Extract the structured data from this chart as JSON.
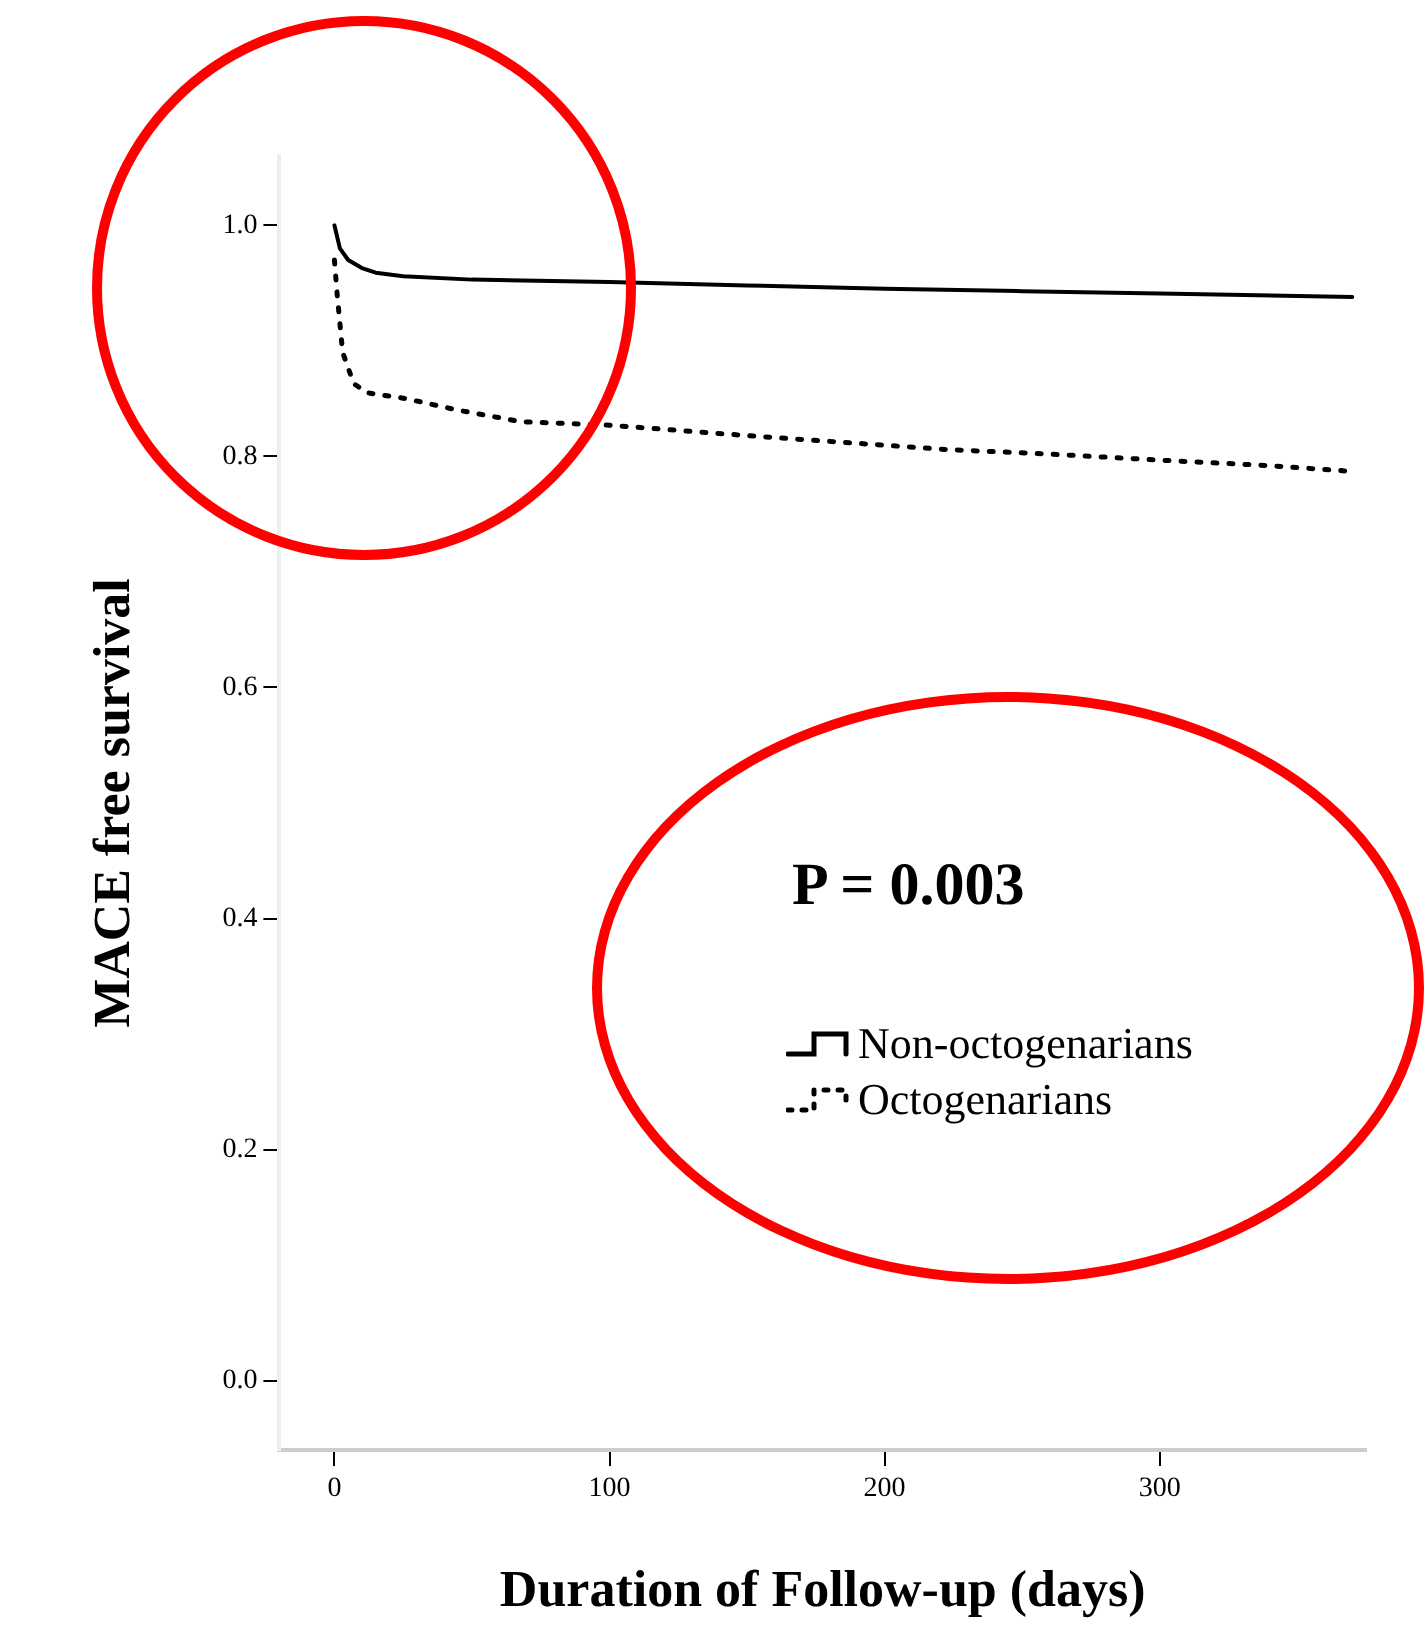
{
  "chart_data": {
    "type": "line",
    "xlabel": "Duration of Follow-up (days)",
    "ylabel": "MACE free survival",
    "annotations": [
      "P = 0.003"
    ],
    "series": [
      {
        "name": "Non-octogenarians",
        "color": "#000000",
        "line_style": "solid",
        "x": [
          0,
          2,
          5,
          10,
          15,
          25,
          50,
          100,
          150,
          200,
          250,
          300,
          370
        ],
        "values": [
          1.0,
          0.98,
          0.97,
          0.963,
          0.959,
          0.956,
          0.953,
          0.951,
          0.948,
          0.945,
          0.943,
          0.941,
          0.938
        ]
      },
      {
        "name": "Octogenarians",
        "color": "#000000",
        "line_style": "dotted",
        "x": [
          0,
          1,
          3,
          7,
          12,
          26,
          45,
          68,
          100,
          150,
          222,
          260,
          306,
          340,
          370
        ],
        "values": [
          0.97,
          0.94,
          0.89,
          0.863,
          0.855,
          0.85,
          0.84,
          0.83,
          0.827,
          0.818,
          0.806,
          0.802,
          0.796,
          0.792,
          0.787
        ]
      }
    ],
    "xlim": [
      -20,
      375
    ],
    "xticks": [
      0,
      100,
      200,
      300
    ],
    "ylim": [
      -0.06,
      1.06
    ],
    "yticks": [
      {
        "value": 0,
        "label": "0.0"
      },
      {
        "value": 0.2,
        "label": "0.2"
      },
      {
        "value": 0.4,
        "label": "0.4"
      },
      {
        "value": 0.6,
        "label": "0.6"
      },
      {
        "value": 0.8,
        "label": "0.8"
      },
      {
        "value": 1,
        "label": "1.0"
      }
    ],
    "grid": false,
    "legend": "right",
    "marker": "none"
  }
}
